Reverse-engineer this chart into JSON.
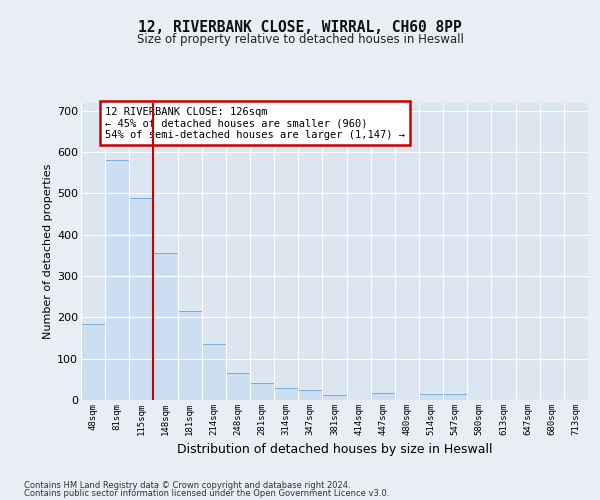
{
  "title1": "12, RIVERBANK CLOSE, WIRRAL, CH60 8PP",
  "title2": "Size of property relative to detached houses in Heswall",
  "xlabel": "Distribution of detached houses by size in Heswall",
  "ylabel": "Number of detached properties",
  "categories": [
    "48sqm",
    "81sqm",
    "115sqm",
    "148sqm",
    "181sqm",
    "214sqm",
    "248sqm",
    "281sqm",
    "314sqm",
    "347sqm",
    "381sqm",
    "414sqm",
    "447sqm",
    "480sqm",
    "514sqm",
    "547sqm",
    "580sqm",
    "613sqm",
    "647sqm",
    "680sqm",
    "713sqm"
  ],
  "values": [
    185,
    580,
    490,
    355,
    215,
    135,
    65,
    40,
    28,
    23,
    12,
    0,
    18,
    0,
    14,
    14,
    0,
    0,
    0,
    0,
    0
  ],
  "bar_color": "#ccdff2",
  "bar_edge_color": "#7aaed4",
  "annotation_text": "12 RIVERBANK CLOSE: 126sqm\n← 45% of detached houses are smaller (960)\n54% of semi-detached houses are larger (1,147) →",
  "annotation_box_color": "#ffffff",
  "annotation_box_edge_color": "#cc0000",
  "footer1": "Contains HM Land Registry data © Crown copyright and database right 2024.",
  "footer2": "Contains public sector information licensed under the Open Government Licence v3.0.",
  "ylim": [
    0,
    720
  ],
  "yticks": [
    0,
    100,
    200,
    300,
    400,
    500,
    600,
    700
  ],
  "fig_bg": "#e8eef4",
  "plot_bg": "#dce6f0"
}
